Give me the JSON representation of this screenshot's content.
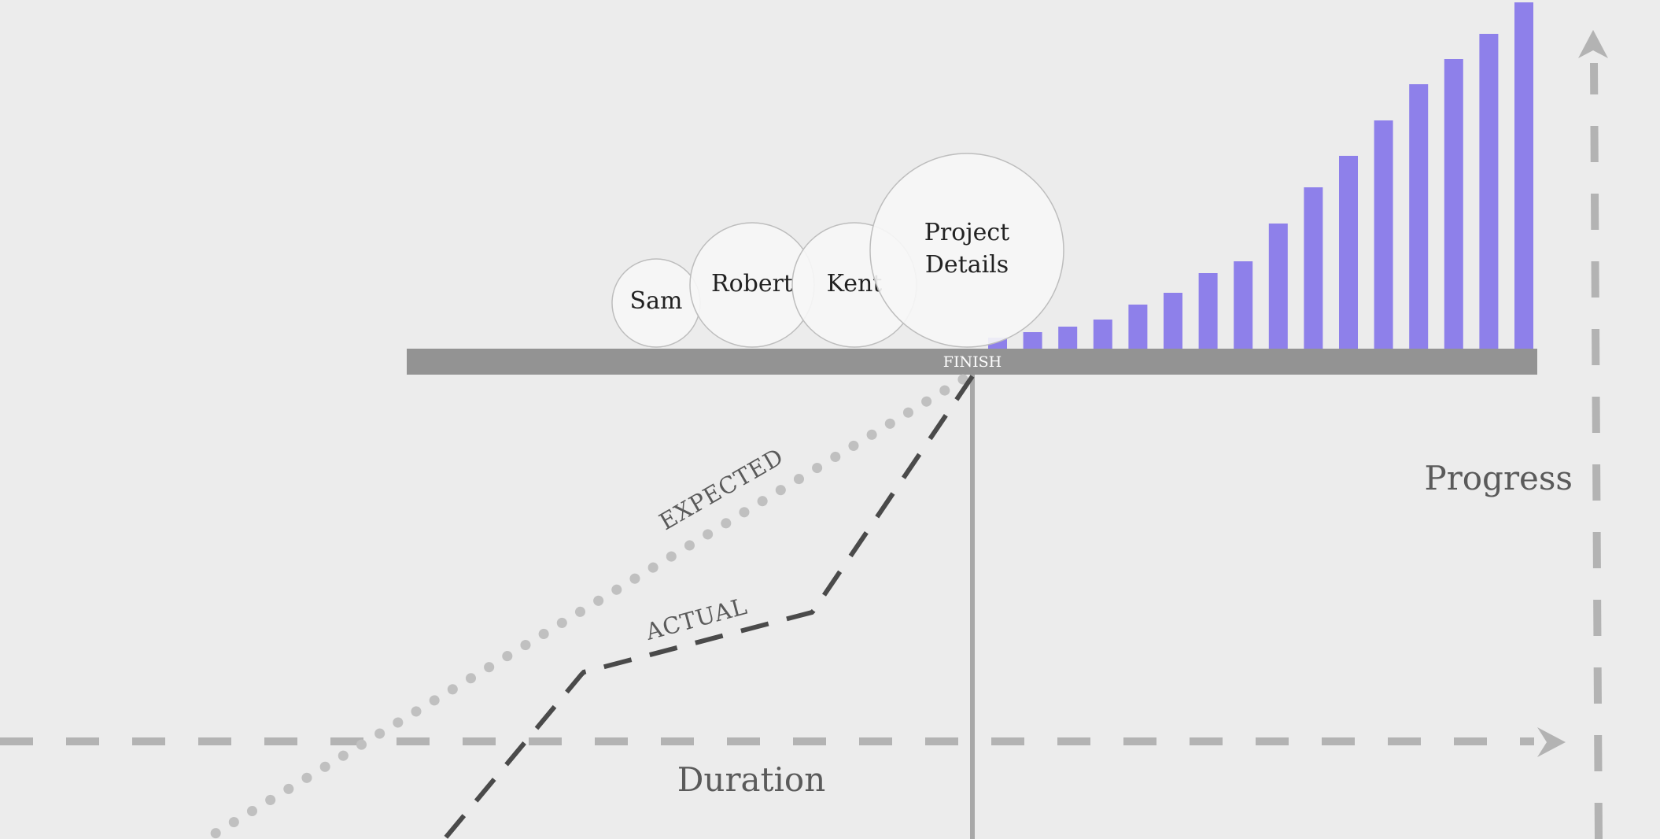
{
  "labels": {
    "finish": "FINISH",
    "expected": "EXPECTED",
    "actual": "ACTUAL",
    "duration": "Duration",
    "progress": "Progress"
  },
  "bubbles": [
    {
      "name": "sam",
      "lines": [
        "Sam"
      ]
    },
    {
      "name": "robert",
      "lines": [
        "Robert"
      ]
    },
    {
      "name": "kent",
      "lines": [
        "Kent"
      ]
    },
    {
      "name": "project-details",
      "lines": [
        "Project",
        "Details"
      ]
    }
  ],
  "progress_bars": {
    "values": [
      14,
      21,
      28,
      37,
      56,
      71,
      96,
      111,
      159,
      205,
      245,
      290,
      336,
      368,
      400,
      440
    ]
  },
  "colors": {
    "background": "#ececec",
    "bar": "#8e80ea",
    "finish_band": "#939393",
    "axis": "#b3b3b3",
    "expected_line": "#c0c0c0",
    "actual_line": "#4a4a4a",
    "bubble_fill": "#f7f7f7",
    "bubble_stroke": "#bdbdbd"
  }
}
